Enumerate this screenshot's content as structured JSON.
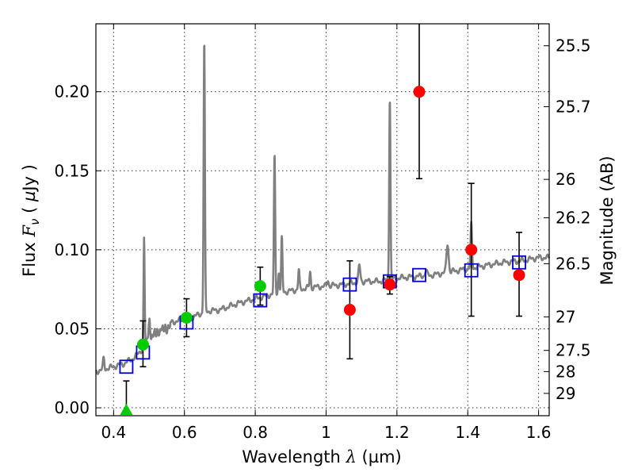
{
  "chart_data": {
    "type": "scatter",
    "xlabel": "Wavelength λ (µm)",
    "ylabel": "Flux F_ν (µJy)",
    "ylabel_parts": {
      "prefix": "Flux",
      "var": "F",
      "sub": "ν",
      "open": "(",
      "mu": "µ",
      "unit": "Jy",
      "close": ")"
    },
    "xlabel_parts": {
      "text": "Wavelength",
      "var": "λ",
      "unit": "(µm)"
    },
    "y2label": "Magnitude (AB)",
    "xlim": [
      0.35,
      1.63
    ],
    "ylim": [
      -0.005,
      0.243
    ],
    "xticks": [
      0.4,
      0.6,
      0.8,
      1.0,
      1.2,
      1.4,
      1.6
    ],
    "xtick_labels": [
      "0.4",
      "0.6",
      "0.8",
      "1",
      "1.2",
      "1.4",
      "1.6"
    ],
    "yticks": [
      0.0,
      0.05,
      0.1,
      0.15,
      0.2
    ],
    "ytick_labels": [
      "0.00",
      "0.05",
      "0.10",
      "0.15",
      "0.20"
    ],
    "mag_ticks": [
      25.5,
      25.7,
      26,
      26.2,
      26.5,
      27,
      27.5,
      28,
      29
    ],
    "mag_tick_labels": [
      "25.5",
      "25.7",
      "26",
      "26.2",
      "26.5",
      "27",
      "27.5",
      "28",
      "29"
    ],
    "grid": true,
    "colors": {
      "spectrum": "#808080",
      "model": "#0000cc",
      "green": "#00cc00",
      "red": "#ff0000",
      "errorbar": "#000000"
    },
    "series": [
      {
        "name": "model spectrum",
        "kind": "line",
        "continuum": [
          [
            0.35,
            0.023
          ],
          [
            0.4,
            0.026
          ],
          [
            0.43,
            0.028
          ],
          [
            0.46,
            0.032
          ],
          [
            0.48,
            0.037
          ],
          [
            0.5,
            0.045
          ],
          [
            0.52,
            0.05
          ],
          [
            0.55,
            0.053
          ],
          [
            0.58,
            0.055
          ],
          [
            0.62,
            0.057
          ],
          [
            0.66,
            0.061
          ],
          [
            0.7,
            0.062
          ],
          [
            0.75,
            0.066
          ],
          [
            0.8,
            0.069
          ],
          [
            0.85,
            0.072
          ],
          [
            0.9,
            0.074
          ],
          [
            0.95,
            0.076
          ],
          [
            1.0,
            0.077
          ],
          [
            1.05,
            0.078
          ],
          [
            1.1,
            0.08
          ],
          [
            1.15,
            0.08
          ],
          [
            1.2,
            0.082
          ],
          [
            1.25,
            0.083
          ],
          [
            1.3,
            0.084
          ],
          [
            1.35,
            0.086
          ],
          [
            1.4,
            0.088
          ],
          [
            1.45,
            0.09
          ],
          [
            1.5,
            0.092
          ],
          [
            1.55,
            0.093
          ],
          [
            1.6,
            0.095
          ],
          [
            1.63,
            0.095
          ]
        ],
        "lines": [
          {
            "x": 0.372,
            "peak": 0.031,
            "w": 0.002
          },
          {
            "x": 0.4861,
            "peak": 0.107,
            "w": 0.0015
          },
          {
            "x": 0.501,
            "peak": 0.058,
            "w": 0.002
          },
          {
            "x": 0.656,
            "peak": 0.232,
            "w": 0.0018
          },
          {
            "x": 0.8545,
            "peak": 0.159,
            "w": 0.0018
          },
          {
            "x": 0.8665,
            "peak": 0.086,
            "w": 0.0018
          },
          {
            "x": 0.875,
            "peak": 0.107,
            "w": 0.0018
          },
          {
            "x": 0.923,
            "peak": 0.087,
            "w": 0.0018
          },
          {
            "x": 0.955,
            "peak": 0.086,
            "w": 0.0018
          },
          {
            "x": 1.005,
            "peak": 0.081,
            "w": 0.002
          },
          {
            "x": 1.094,
            "peak": 0.09,
            "w": 0.0025
          },
          {
            "x": 1.18,
            "peak": 0.197,
            "w": 0.0018
          },
          {
            "x": 1.282,
            "peak": 0.087,
            "w": 0.0025
          },
          {
            "x": 1.343,
            "peak": 0.104,
            "w": 0.003
          },
          {
            "x": 1.41,
            "peak": 0.116,
            "w": 0.002
          }
        ]
      },
      {
        "name": "model photometry",
        "kind": "open-square",
        "points": [
          [
            0.436,
            0.026
          ],
          [
            0.483,
            0.035
          ],
          [
            0.606,
            0.054
          ],
          [
            0.814,
            0.068
          ],
          [
            1.067,
            0.078
          ],
          [
            1.18,
            0.08
          ],
          [
            1.263,
            0.084
          ],
          [
            1.41,
            0.087
          ],
          [
            1.545,
            0.092
          ]
        ]
      },
      {
        "name": "observed (green)",
        "kind": "circle",
        "points": [
          {
            "x": 0.483,
            "y": 0.04,
            "lo": 0.026,
            "hi": 0.055
          },
          {
            "x": 0.606,
            "y": 0.057,
            "lo": 0.045,
            "hi": 0.069
          },
          {
            "x": 0.814,
            "y": 0.077,
            "lo": 0.065,
            "hi": 0.089
          }
        ]
      },
      {
        "name": "observed upper limit (green)",
        "kind": "triangle",
        "points": [
          {
            "x": 0.436,
            "y": -0.002,
            "lo": -0.002,
            "hi": 0.017
          }
        ]
      },
      {
        "name": "observed (red)",
        "kind": "circle",
        "points": [
          {
            "x": 1.067,
            "y": 0.062,
            "lo": 0.031,
            "hi": 0.093
          },
          {
            "x": 1.18,
            "y": 0.078,
            "lo": 0.072,
            "hi": 0.083
          },
          {
            "x": 1.263,
            "y": 0.2,
            "lo": 0.145,
            "hi": 0.243
          },
          {
            "x": 1.41,
            "y": 0.1,
            "lo": 0.058,
            "hi": 0.142
          },
          {
            "x": 1.545,
            "y": 0.084,
            "lo": 0.058,
            "hi": 0.111
          }
        ]
      }
    ]
  }
}
